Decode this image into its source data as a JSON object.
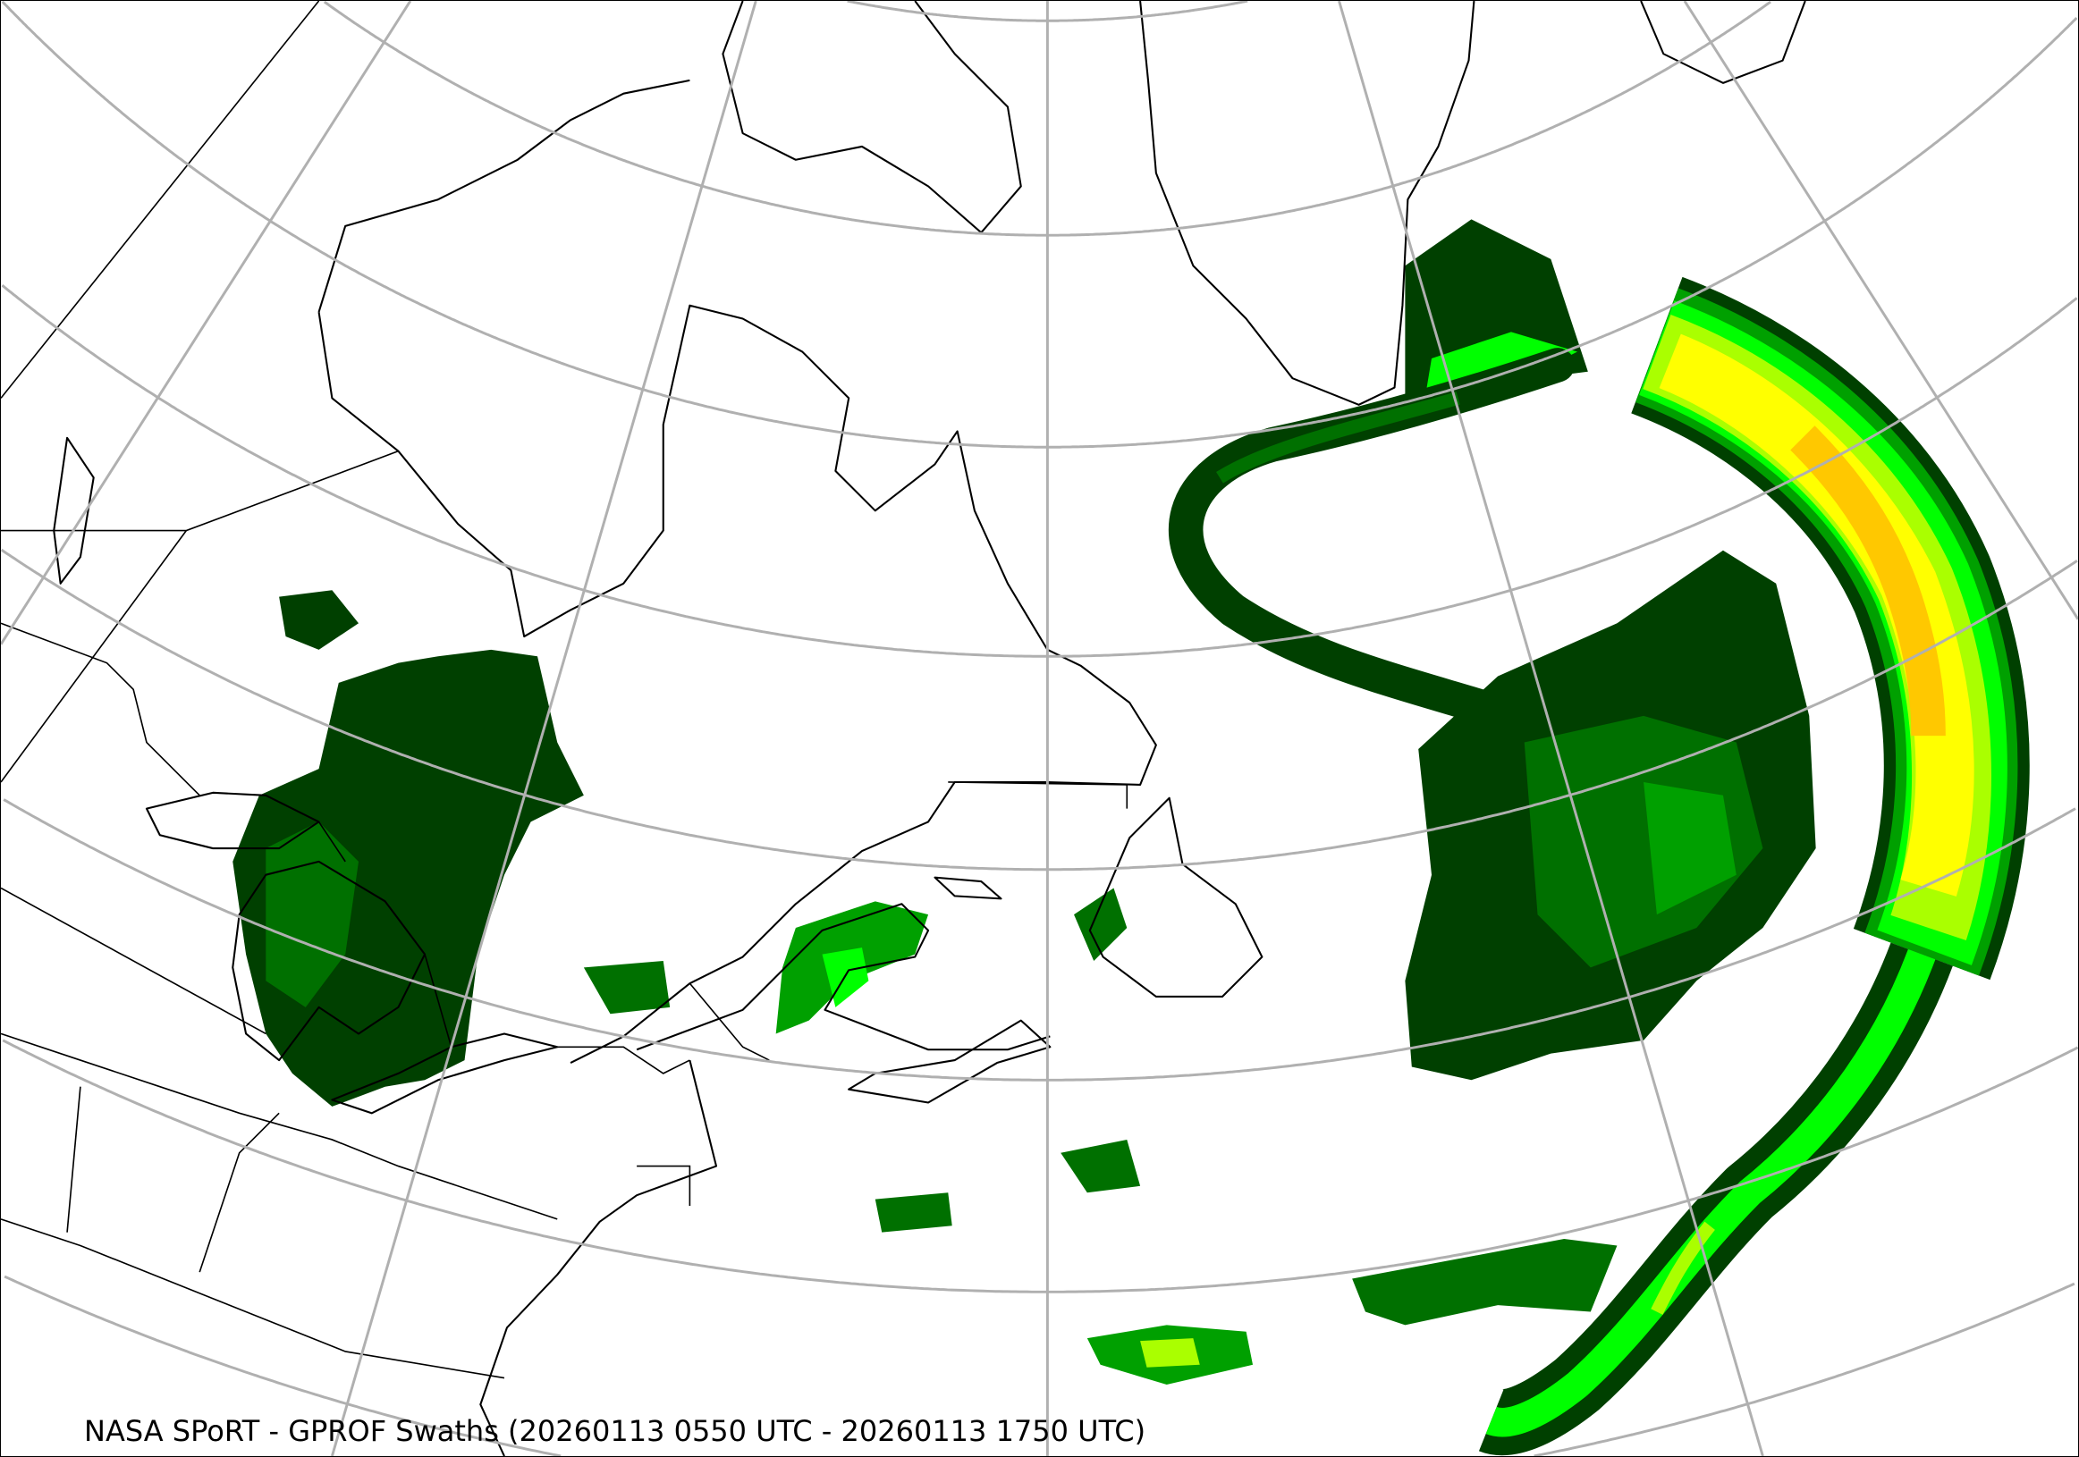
{
  "caption": "NASA SPoRT - GPROF Swaths (20260113 0550 UTC - 20260113 1750 UTC)",
  "precip_colors": [
    "#004000",
    "#007000",
    "#00a000",
    "#00ff00",
    "#aaff00",
    "#ffff00",
    "#ffc800"
  ],
  "graticule_color": "#b0b0b0",
  "coastline_color": "#000000",
  "background": "#ffffff"
}
